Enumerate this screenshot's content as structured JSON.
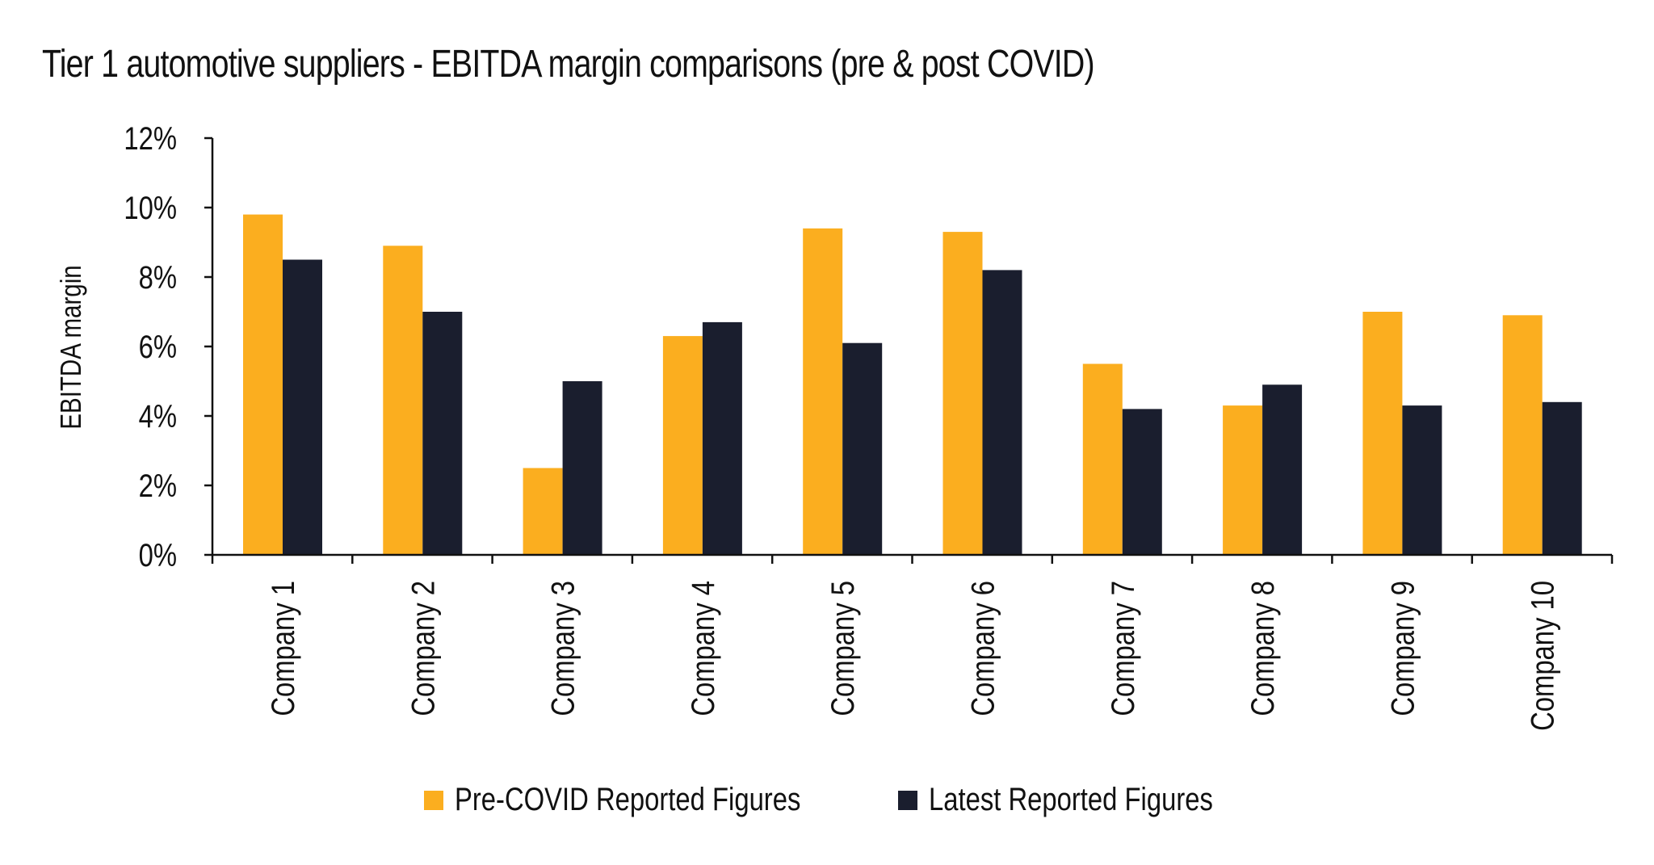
{
  "chart_data": {
    "type": "bar",
    "title": "Tier 1 automotive suppliers - EBITDA margin comparisons (pre & post COVID)",
    "xlabel": "",
    "ylabel": "EBITDA margin",
    "ylim": [
      0,
      12
    ],
    "yticks": [
      0,
      2,
      4,
      6,
      8,
      10,
      12
    ],
    "ytick_labels": [
      "0%",
      "2%",
      "4%",
      "6%",
      "8%",
      "10%",
      "12%"
    ],
    "grid": false,
    "legend_position": "bottom",
    "categories": [
      "Company 1",
      "Company 2",
      "Company 3",
      "Company 4",
      "Company 5",
      "Company 6",
      "Company 7",
      "Company 8",
      "Company 9",
      "Company 10"
    ],
    "series": [
      {
        "name": "Pre-COVID Reported Figures",
        "color": "#FBAE1F",
        "values": [
          9.8,
          8.9,
          2.5,
          6.3,
          9.4,
          9.3,
          5.5,
          4.3,
          7.0,
          6.9
        ]
      },
      {
        "name": "Latest Reported Figures",
        "color": "#1A1E2E",
        "values": [
          8.5,
          7.0,
          5.0,
          6.7,
          6.1,
          8.2,
          4.2,
          4.9,
          4.3,
          4.4
        ]
      }
    ]
  }
}
